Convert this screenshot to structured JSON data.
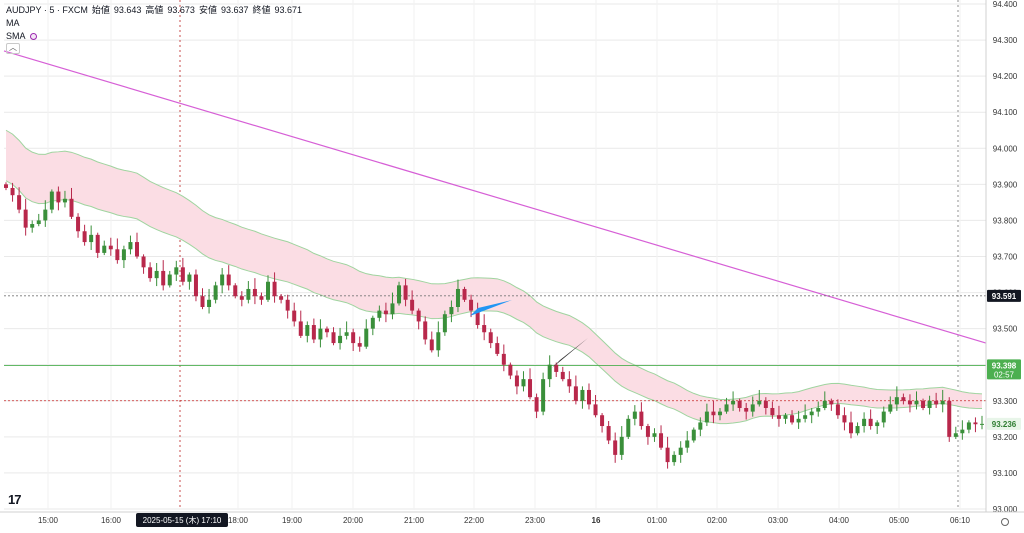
{
  "header": {
    "symbol_line": "AUDJPY · 5 · FXCM",
    "open_label": "始値",
    "open": "93.643",
    "high_label": "高値",
    "high": "93.673",
    "low_label": "安値",
    "low": "93.637",
    "close_label": "終値",
    "close": "93.671",
    "indicator1": "MA",
    "indicator2": "SMA"
  },
  "colors": {
    "up": "#26a69a",
    "up_body": "#3a8f3a",
    "down": "#b8284b",
    "band_fill": "#fbdde4",
    "band_line": "#9fd49f",
    "sma_line": "#d65fd6",
    "grid": "#e9e9e9",
    "price_badge_dark": "#131722",
    "price_badge_green": "#4caf50"
  },
  "chart_data": {
    "type": "candlestick",
    "y_axis": {
      "ticks": [
        "94.400",
        "94.300",
        "94.200",
        "94.100",
        "94.000",
        "93.900",
        "93.800",
        "93.700",
        "93.600",
        "93.500",
        "93.400",
        "93.300",
        "93.200",
        "93.100",
        "93.000"
      ],
      "range": [
        93.0,
        94.4
      ]
    },
    "x_axis": {
      "ticks": [
        "15:00",
        "16:00",
        "17:10",
        "18:00",
        "19:00",
        "20:00",
        "21:00",
        "22:00",
        "23:00",
        "16",
        "01:00",
        "02:00",
        "03:00",
        "04:00",
        "05:00",
        "06:10"
      ]
    },
    "crosshair_label": {
      "date": "2025-05-15 (木)",
      "time": "17:10"
    },
    "price_badges": [
      {
        "value": "93.591",
        "style": "dark"
      },
      {
        "value": "93.398",
        "sub": "02:57",
        "style": "green"
      },
      {
        "value": "93.236",
        "style": "light"
      }
    ],
    "horizontal_levels": [
      93.591,
      93.398,
      93.3
    ],
    "sma_long": {
      "start": 94.27,
      "end": 93.46
    },
    "closes": [
      93.89,
      93.87,
      93.83,
      93.78,
      93.79,
      93.8,
      93.83,
      93.88,
      93.85,
      93.86,
      93.81,
      93.77,
      93.74,
      93.76,
      93.71,
      93.73,
      93.72,
      93.69,
      93.72,
      93.74,
      93.7,
      93.67,
      93.64,
      93.66,
      93.62,
      93.65,
      93.67,
      93.63,
      93.65,
      93.59,
      93.56,
      93.58,
      93.62,
      93.65,
      93.62,
      93.59,
      93.58,
      93.61,
      93.59,
      93.58,
      93.63,
      93.59,
      93.58,
      93.55,
      93.52,
      93.48,
      93.51,
      93.47,
      93.5,
      93.49,
      93.46,
      93.48,
      93.49,
      93.46,
      93.45,
      93.5,
      93.53,
      93.55,
      93.54,
      93.57,
      93.62,
      93.58,
      93.55,
      93.52,
      93.47,
      93.44,
      93.49,
      93.54,
      93.56,
      93.61,
      93.58,
      93.55,
      93.51,
      93.49,
      93.46,
      93.43,
      93.4,
      93.37,
      93.34,
      93.36,
      93.31,
      93.27,
      93.36,
      93.4,
      93.38,
      93.36,
      93.34,
      93.3,
      93.33,
      93.29,
      93.26,
      93.23,
      93.19,
      93.15,
      93.2,
      93.25,
      93.27,
      93.23,
      93.2,
      93.21,
      93.17,
      93.13,
      93.15,
      93.17,
      93.19,
      93.22,
      93.24,
      93.27,
      93.26,
      93.27,
      93.29,
      93.3,
      93.28,
      93.27,
      93.29,
      93.3,
      93.28,
      93.26,
      93.25,
      93.26,
      93.24,
      93.25,
      93.26,
      93.27,
      93.28,
      93.3,
      93.29,
      93.26,
      93.24,
      93.21,
      93.23,
      93.25,
      93.23,
      93.24,
      93.27,
      93.29,
      93.31,
      93.3,
      93.29,
      93.3,
      93.28,
      93.3,
      93.29,
      93.3,
      93.2,
      93.21,
      93.22,
      93.24,
      93.235,
      93.236
    ]
  }
}
